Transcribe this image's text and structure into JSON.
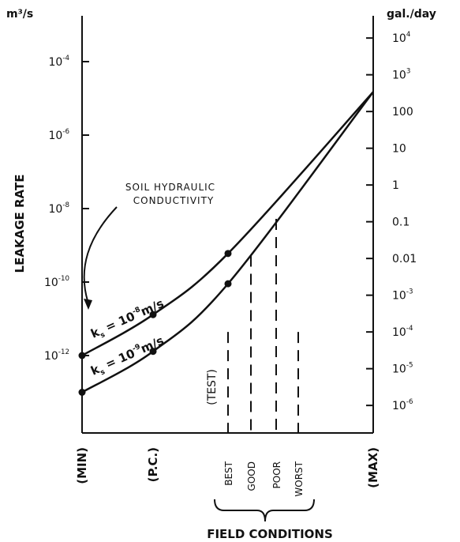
{
  "chart_data": {
    "type": "line",
    "title": "",
    "left_axis": {
      "label": "LEAKAGE RATE",
      "unit": "m³/s",
      "scale": "log",
      "ticks": [
        {
          "base": "10",
          "exp": "-4",
          "value": 0.0001
        },
        {
          "base": "10",
          "exp": "-6",
          "value": 1e-06
        },
        {
          "base": "10",
          "exp": "-8",
          "value": 1e-08
        },
        {
          "base": "10",
          "exp": "-10",
          "value": 1e-10
        },
        {
          "base": "10",
          "exp": "-12",
          "value": 1e-12
        }
      ]
    },
    "right_axis": {
      "unit": "gal./day",
      "scale": "log",
      "ticks": [
        {
          "base": "10",
          "exp": "4",
          "value": 10000
        },
        {
          "base": "10",
          "exp": "3",
          "value": 1000
        },
        {
          "base": "100",
          "exp": "",
          "value": 100
        },
        {
          "base": "10",
          "exp": "",
          "value": 10
        },
        {
          "base": "1",
          "exp": "",
          "value": 1
        },
        {
          "base": "0.1",
          "exp": "",
          "value": 0.1
        },
        {
          "base": "0.01",
          "exp": "",
          "value": 0.01
        },
        {
          "base": "10",
          "exp": "-3",
          "value": 0.001
        },
        {
          "base": "10",
          "exp": "-4",
          "value": 0.0001
        },
        {
          "base": "10",
          "exp": "-5",
          "value": 1e-05
        },
        {
          "base": "10",
          "exp": "-6",
          "value": 1e-06
        }
      ]
    },
    "x_axis": {
      "label": "FIELD CONDITIONS",
      "categories": [
        "(MIN)",
        "(P.C.)",
        "BEST",
        "GOOD",
        "POOR",
        "WORST",
        "(MAX)"
      ],
      "test_label": "(TEST)"
    },
    "annotation": {
      "line1": "SOIL HYDRAULIC",
      "line2": "CONDUCTIVITY"
    },
    "series": [
      {
        "name": "10-8 m/s",
        "label_k": "k",
        "label_sub": "s",
        "label_eq": " = 10",
        "label_exp": "-8",
        "label_unit": "m/s",
        "points": [
          {
            "x": "(MIN)",
            "y": 1e-12
          },
          {
            "x": "(P.C.)",
            "y": 1.3e-11
          },
          {
            "x": "BEST",
            "y": 6e-10
          },
          {
            "x": "(MAX)",
            "y": 1.5e-05
          }
        ]
      },
      {
        "name": "10-9 m/s",
        "label_k": "k",
        "label_sub": "s",
        "label_eq": " = 10",
        "label_exp": "-9",
        "label_unit": "m/s",
        "points": [
          {
            "x": "(MIN)",
            "y": 1e-13
          },
          {
            "x": "(P.C.)",
            "y": 1.3e-12
          },
          {
            "x": "BEST",
            "y": 9e-11
          },
          {
            "x": "(MAX)",
            "y": 1.5e-05
          }
        ]
      }
    ],
    "vertical_markers": [
      {
        "x": "(TEST)",
        "y_top": 0.0001
      },
      {
        "x": "GOOD",
        "y_top": 0.012
      },
      {
        "x": "POOR",
        "y_top": 0.12
      },
      {
        "x": "WORST",
        "y_top": 0.0001
      }
    ],
    "grid": false
  }
}
